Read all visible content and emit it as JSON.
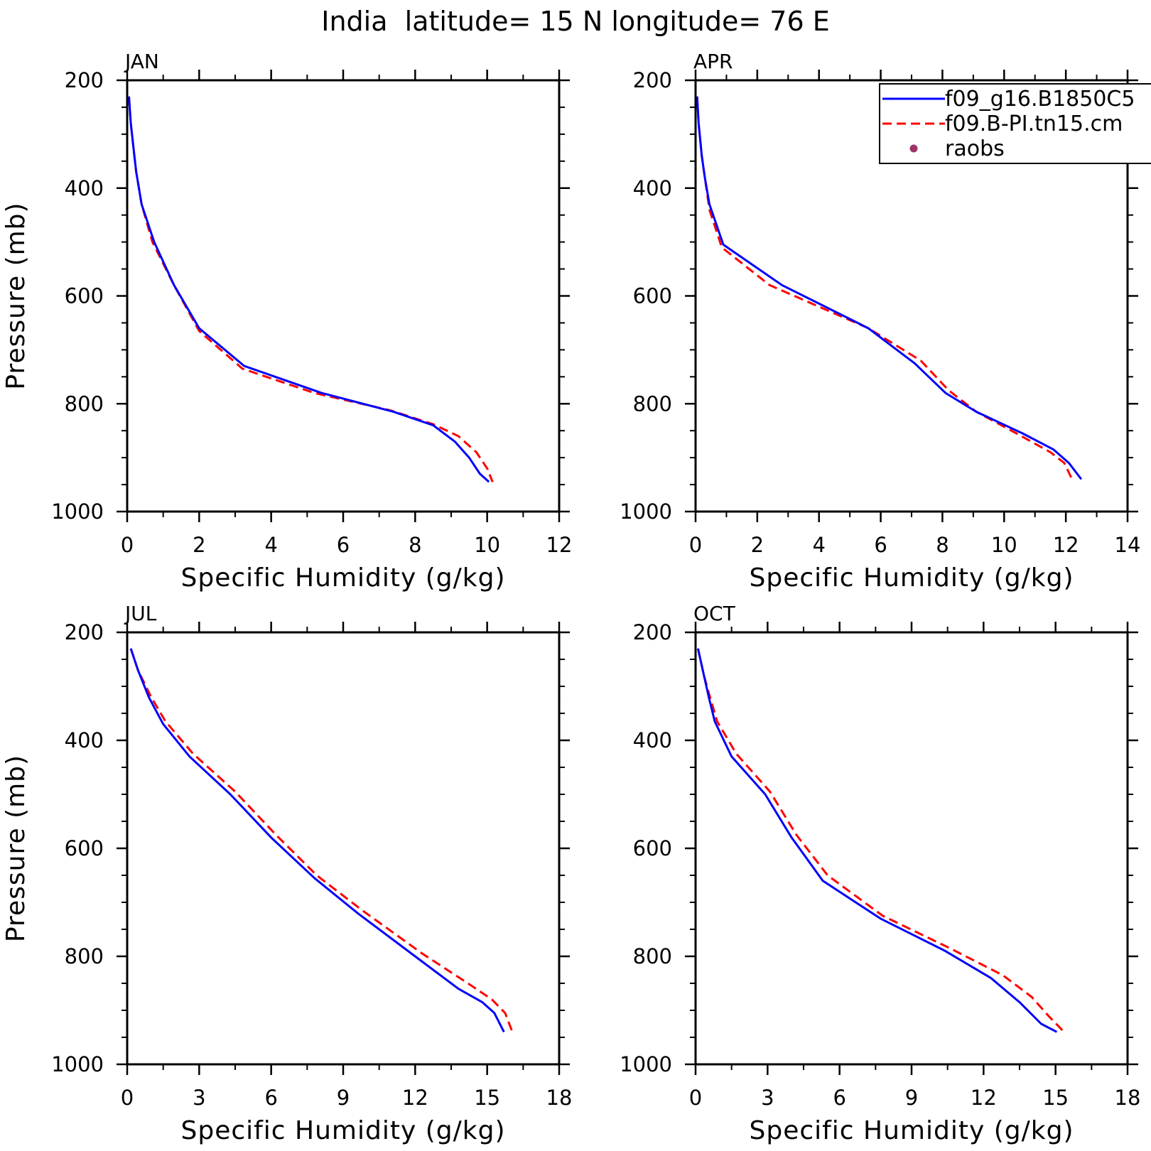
{
  "figure": {
    "title": "India  latitude= 15 N longitude= 76 E"
  },
  "legend": {
    "entries": [
      {
        "label": "f09_g16.B1850C5",
        "color": "#0000ff",
        "style": "solid"
      },
      {
        "label": "f09.B-PI.tn15.cm",
        "color": "#ff0000",
        "style": "dashed"
      },
      {
        "label": "raobs",
        "color": "#a0336a",
        "style": "marker"
      }
    ]
  },
  "chart_data": [
    {
      "type": "line",
      "title": "JAN",
      "xlabel": "Specific Humidity (g/kg)",
      "ylabel": "Pressure (mb)",
      "xlim": [
        0,
        12
      ],
      "ylim": [
        200,
        1000
      ],
      "y_inverted": true,
      "xticks": [
        0,
        2,
        4,
        6,
        8,
        10,
        12
      ],
      "yticks": [
        200,
        400,
        600,
        800,
        1000
      ],
      "series": [
        {
          "name": "f09_g16.B1850C5",
          "color": "#0000ff",
          "points": [
            [
              0.05,
              230
            ],
            [
              0.1,
              280
            ],
            [
              0.2,
              340
            ],
            [
              0.25,
              370
            ],
            [
              0.4,
              430
            ],
            [
              0.75,
              500
            ],
            [
              1.3,
              580
            ],
            [
              2.0,
              660
            ],
            [
              3.25,
              730
            ],
            [
              5.4,
              780
            ],
            [
              7.4,
              815
            ],
            [
              8.5,
              840
            ],
            [
              9.1,
              870
            ],
            [
              9.5,
              900
            ],
            [
              9.8,
              930
            ],
            [
              10.05,
              945
            ]
          ]
        },
        {
          "name": "f09.B-PI.tn15.cm",
          "color": "#ff0000",
          "points": [
            [
              0.05,
              230
            ],
            [
              0.1,
              280
            ],
            [
              0.2,
              340
            ],
            [
              0.25,
              370
            ],
            [
              0.4,
              430
            ],
            [
              0.7,
              500
            ],
            [
              1.3,
              580
            ],
            [
              2.0,
              665
            ],
            [
              3.2,
              735
            ],
            [
              5.2,
              780
            ],
            [
              7.3,
              812
            ],
            [
              8.5,
              838
            ],
            [
              9.2,
              860
            ],
            [
              9.7,
              890
            ],
            [
              10.0,
              920
            ],
            [
              10.15,
              945
            ]
          ]
        }
      ]
    },
    {
      "type": "line",
      "title": "APR",
      "xlabel": "Specific Humidity (g/kg)",
      "ylabel": "",
      "xlim": [
        0,
        14
      ],
      "ylim": [
        200,
        1000
      ],
      "y_inverted": true,
      "xticks": [
        0,
        2,
        4,
        6,
        8,
        10,
        12,
        14
      ],
      "yticks": [
        200,
        400,
        600,
        800,
        1000
      ],
      "series": [
        {
          "name": "f09_g16.B1850C5",
          "color": "#0000ff",
          "points": [
            [
              0.05,
              230
            ],
            [
              0.1,
              280
            ],
            [
              0.2,
              340
            ],
            [
              0.3,
              380
            ],
            [
              0.45,
              430
            ],
            [
              0.9,
              505
            ],
            [
              2.8,
              580
            ],
            [
              5.6,
              660
            ],
            [
              7.1,
              725
            ],
            [
              8.1,
              780
            ],
            [
              9.1,
              815
            ],
            [
              10.6,
              855
            ],
            [
              11.6,
              885
            ],
            [
              12.1,
              910
            ],
            [
              12.5,
              940
            ]
          ]
        },
        {
          "name": "f09.B-PI.tn15.cm",
          "color": "#ff0000",
          "points": [
            [
              0.05,
              230
            ],
            [
              0.1,
              280
            ],
            [
              0.2,
              340
            ],
            [
              0.3,
              380
            ],
            [
              0.45,
              440
            ],
            [
              0.85,
              510
            ],
            [
              2.4,
              580
            ],
            [
              5.6,
              660
            ],
            [
              7.3,
              720
            ],
            [
              8.2,
              775
            ],
            [
              9.1,
              815
            ],
            [
              10.4,
              855
            ],
            [
              11.5,
              890
            ],
            [
              11.95,
              910
            ],
            [
              12.2,
              940
            ]
          ]
        }
      ]
    },
    {
      "type": "line",
      "title": "JUL",
      "xlabel": "Specific Humidity (g/kg)",
      "ylabel": "Pressure (mb)",
      "xlim": [
        0,
        18
      ],
      "ylim": [
        200,
        1000
      ],
      "y_inverted": true,
      "xticks": [
        0,
        3,
        6,
        9,
        12,
        15,
        18
      ],
      "yticks": [
        200,
        400,
        600,
        800,
        1000
      ],
      "series": [
        {
          "name": "f09_g16.B1850C5",
          "color": "#0000ff",
          "points": [
            [
              0.15,
              230
            ],
            [
              0.45,
              270
            ],
            [
              0.9,
              320
            ],
            [
              1.5,
              370
            ],
            [
              2.6,
              430
            ],
            [
              4.3,
              500
            ],
            [
              6.0,
              580
            ],
            [
              7.8,
              655
            ],
            [
              9.6,
              720
            ],
            [
              12.0,
              800
            ],
            [
              13.8,
              860
            ],
            [
              14.8,
              885
            ],
            [
              15.3,
              905
            ],
            [
              15.7,
              940
            ]
          ]
        },
        {
          "name": "f09.B-PI.tn15.cm",
          "color": "#ff0000",
          "points": [
            [
              0.15,
              230
            ],
            [
              0.45,
              270
            ],
            [
              1.0,
              320
            ],
            [
              1.6,
              365
            ],
            [
              2.75,
              425
            ],
            [
              4.5,
              495
            ],
            [
              6.2,
              575
            ],
            [
              7.9,
              650
            ],
            [
              9.8,
              715
            ],
            [
              12.3,
              795
            ],
            [
              14.2,
              850
            ],
            [
              15.2,
              880
            ],
            [
              15.75,
              905
            ],
            [
              16.05,
              940
            ]
          ]
        }
      ]
    },
    {
      "type": "line",
      "title": "OCT",
      "xlabel": "Specific Humidity (g/kg)",
      "ylabel": "",
      "xlim": [
        0,
        18
      ],
      "ylim": [
        200,
        1000
      ],
      "y_inverted": true,
      "xticks": [
        0,
        3,
        6,
        9,
        12,
        15,
        18
      ],
      "yticks": [
        200,
        400,
        600,
        800,
        1000
      ],
      "series": [
        {
          "name": "f09_g16.B1850C5",
          "color": "#0000ff",
          "points": [
            [
              0.1,
              230
            ],
            [
              0.35,
              280
            ],
            [
              0.55,
              320
            ],
            [
              0.8,
              365
            ],
            [
              1.5,
              430
            ],
            [
              2.9,
              500
            ],
            [
              4.0,
              580
            ],
            [
              5.3,
              660
            ],
            [
              7.7,
              730
            ],
            [
              10.4,
              790
            ],
            [
              12.3,
              840
            ],
            [
              13.5,
              885
            ],
            [
              14.4,
              925
            ],
            [
              15.05,
              940
            ]
          ]
        },
        {
          "name": "f09.B-PI.tn15.cm",
          "color": "#ff0000",
          "points": [
            [
              0.1,
              230
            ],
            [
              0.35,
              280
            ],
            [
              0.6,
              320
            ],
            [
              0.9,
              365
            ],
            [
              1.7,
              425
            ],
            [
              3.1,
              495
            ],
            [
              4.2,
              575
            ],
            [
              5.5,
              650
            ],
            [
              7.8,
              725
            ],
            [
              10.6,
              785
            ],
            [
              12.8,
              835
            ],
            [
              14.0,
              875
            ],
            [
              14.7,
              910
            ],
            [
              15.35,
              940
            ]
          ]
        }
      ]
    }
  ]
}
